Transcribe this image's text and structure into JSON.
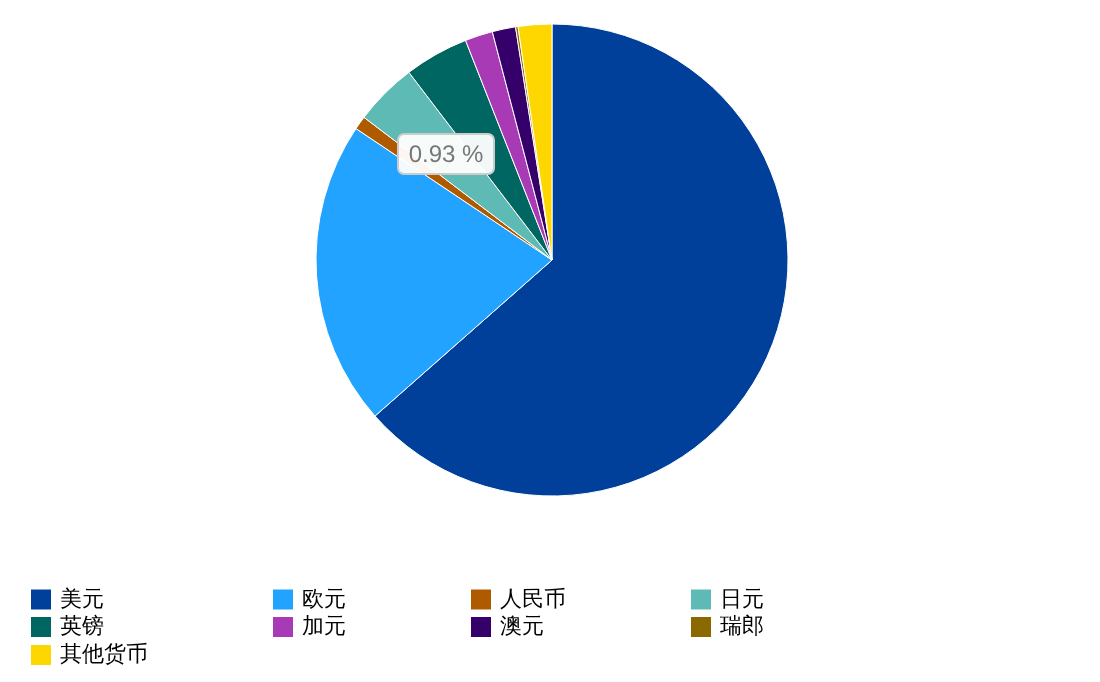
{
  "chart_data": {
    "type": "pie",
    "categories": [
      "美元",
      "欧元",
      "人民币",
      "日元",
      "英镑",
      "加元",
      "澳元",
      "瑞郎",
      "其他货币"
    ],
    "values": [
      63.5,
      20.9,
      0.93,
      4.3,
      4.4,
      1.9,
      1.6,
      0.17,
      2.3
    ],
    "colors": [
      "#00409a",
      "#22a3ff",
      "#b05a00",
      "#5ebab5",
      "#006661",
      "#a83ab5",
      "#36006a",
      "#8a6a00",
      "#ffd700"
    ],
    "legend": "bottom",
    "annotations": [
      "0.93 %"
    ]
  }
}
